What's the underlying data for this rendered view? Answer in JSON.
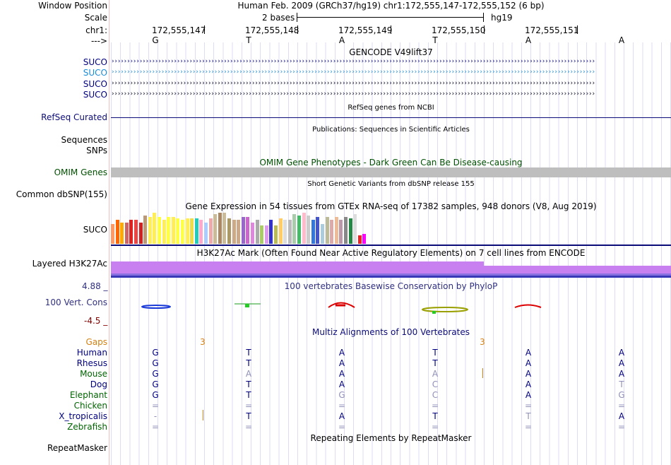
{
  "header": {
    "window_position_label": "Window Position",
    "window_position_value": "Human Feb. 2009 (GRCh37/hg19)   chr1:172,555,147-172,555,152 (6 bp)",
    "scale_label": "Scale",
    "scale_value": "2 bases",
    "scale_assembly": "hg19",
    "chrom_label": "chr1:",
    "strand_label": "--->",
    "positions": [
      "172,555,147",
      "172,555,148",
      "172,555,149",
      "172,555,150",
      "172,555,151"
    ],
    "bases": [
      "G",
      "T",
      "A",
      "T",
      "A",
      "A"
    ]
  },
  "tracks": {
    "gencode_title": "GENCODE V49lift37",
    "gencode_rows": [
      "SUCO",
      "SUCO",
      "SUCO",
      "SUCO"
    ],
    "refseq_title": "RefSeq genes from NCBI",
    "refseq_label": "RefSeq Curated",
    "publications_title": "Publications: Sequences in Scientific Articles",
    "sequences_label": "Sequences",
    "snps_label": "SNPs",
    "omim_title": "OMIM Gene Phenotypes - Dark Green Can Be Disease-causing",
    "omim_label": "OMIM Genes",
    "dbsnp_title": "Short Genetic Variants from dbSNP release 155",
    "dbsnp_label": "Common dbSNP(155)",
    "gtex_title": "Gene Expression in 54 tissues from GTEx RNA-seq of 17382 samples, 948 donors (V8, Aug 2019)",
    "gtex_label": "SUCO",
    "h3k27ac_title": "H3K27Ac Mark (Often Found Near Active Regulatory Elements) on 7 cell lines from ENCODE",
    "h3k27ac_label": "Layered H3K27Ac",
    "cons_title": "100 vertebrates Basewise Conservation by PhyloP",
    "cons_label": "100 Vert. Cons",
    "cons_max": "4.88 _",
    "cons_min": "-4.5 _",
    "multiz_title": "Multiz Alignments of 100 Vertebrates",
    "repeat_title": "Repeating Elements by RepeatMasker",
    "repeat_label": "RepeatMasker"
  },
  "gtex_values": [
    14,
    17,
    15,
    15,
    17,
    17,
    15,
    20,
    19,
    22,
    19,
    17,
    19,
    19,
    18,
    17,
    18,
    18,
    18,
    17,
    15,
    18,
    21,
    22,
    22,
    18,
    17,
    17,
    19,
    19,
    15,
    17,
    13,
    13,
    17,
    13,
    18,
    17,
    17,
    21,
    20,
    22,
    20,
    17,
    19,
    14,
    19,
    17,
    19,
    17,
    19,
    18,
    21,
    6,
    7
  ],
  "gtex_colors": [
    "#ff9966",
    "#ff6600",
    "#ffaa00",
    "#cc6666",
    "#dd2222",
    "#ee4444",
    "#cc2222",
    "#bb9977",
    "#ffee55",
    "#ffee55",
    "#ffff44",
    "#ffee55",
    "#ffff44",
    "#ffee55",
    "#ffff44",
    "#ffff44",
    "#ffee55",
    "#eedd44",
    "#22ccbb",
    "#ffaacc",
    "#aaccff",
    "#eeaaaa",
    "#ccbb99",
    "#aa8866",
    "#ccbb99",
    "#aa9966",
    "#ccaa88",
    "#ccaa88",
    "#9966cc",
    "#cc66cc",
    "#dd88dd",
    "#aaaaaa",
    "#aacc66",
    "#dd99ee",
    "#3333cc",
    "#bbbb55",
    "#ffcc66",
    "#dddddd",
    "#bbbbbb",
    "#aaccaa",
    "#44bb66",
    "#ffbbcc",
    "#cccccc",
    "#3377dd",
    "#4455cc",
    "#aaccdd",
    "#bbbb99",
    "#ddaaaa",
    "#eebb99",
    "#bb99aa",
    "#888888",
    "#228844",
    "#dddddd",
    "#ee2222",
    "#ff00ff"
  ],
  "multiz": {
    "gaps_label": "Gaps",
    "gaps": [
      "",
      "3",
      "",
      "",
      "3",
      "",
      ""
    ],
    "species": [
      {
        "name": "Human",
        "color": "#000080",
        "bases": [
          "G",
          "T",
          "A",
          "T",
          "A",
          "A"
        ],
        "dim": [
          false,
          false,
          false,
          false,
          false,
          false
        ]
      },
      {
        "name": "Rhesus",
        "color": "#000080",
        "bases": [
          "G",
          "T",
          "A",
          "T",
          "A",
          "A"
        ],
        "dim": [
          false,
          false,
          false,
          false,
          false,
          false
        ]
      },
      {
        "name": "Mouse",
        "color": "#006400",
        "bases": [
          "G",
          "A",
          "A",
          "A",
          "A",
          "A"
        ],
        "dim": [
          false,
          true,
          false,
          true,
          false,
          false
        ]
      },
      {
        "name": "Dog",
        "color": "#000080",
        "bases": [
          "G",
          "T",
          "A",
          "C",
          "A",
          "T"
        ],
        "dim": [
          false,
          false,
          false,
          true,
          false,
          true
        ]
      },
      {
        "name": "Elephant",
        "color": "#006400",
        "bases": [
          "G",
          "T",
          "G",
          "C",
          "A",
          "G"
        ],
        "dim": [
          false,
          false,
          true,
          true,
          false,
          true
        ]
      },
      {
        "name": "Chicken",
        "color": "#006400",
        "bases": [
          "=",
          "=",
          "=",
          "=",
          "=",
          "="
        ],
        "dim": [
          true,
          true,
          true,
          true,
          true,
          true
        ]
      },
      {
        "name": "X_tropicalis",
        "color": "#000080",
        "bases": [
          "-",
          "T",
          "A",
          "T",
          "T",
          "A"
        ],
        "dim": [
          true,
          false,
          false,
          false,
          true,
          false
        ]
      },
      {
        "name": "Zebrafish",
        "color": "#006400",
        "bases": [
          "=",
          "=",
          "=",
          "=",
          "=",
          "="
        ],
        "dim": [
          true,
          true,
          true,
          true,
          true,
          true
        ]
      }
    ]
  }
}
